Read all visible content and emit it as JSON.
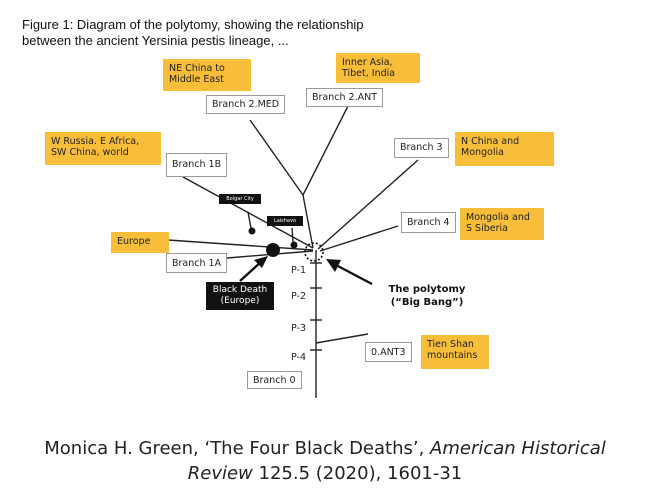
{
  "caption": {
    "line1": "Figure 1: Diagram of the polytomy, showing the relationship",
    "line2": "between the ancient Yersinia pestis lineage, ..."
  },
  "regions": {
    "ne_china": "NE China to Middle East",
    "inner_asia": "Inner Asia, Tibet, India",
    "w_russia": "W Russia. E Africa, SW China, world",
    "n_china": "N China and Mongolia",
    "europe": "Europe",
    "mongolia_siberia": "Mongolia and S Siberia",
    "tien_shan": "Tien Shan mountains"
  },
  "branches": {
    "b2med": "Branch 2.MED",
    "b2ant": "Branch 2.ANT",
    "b1b": "Branch 1B",
    "b3": "Branch 3",
    "b4": "Branch 4",
    "b1a": "Branch 1A",
    "b0ant3": "0.ANT3",
    "b0": "Branch 0"
  },
  "sites": {
    "bolgar": "Bolgar City",
    "laishevo": "Laishevo",
    "black_death": "Black Death (Europe)"
  },
  "points": {
    "p1": "P-1",
    "p2": "P-2",
    "p3": "P-3",
    "p4": "P-4"
  },
  "polytomy": {
    "line1": "The polytomy",
    "line2": "(“Big Bang”)"
  },
  "citation": {
    "author": "Monica H. Green, ‘The Four Black Deaths’, ",
    "journal": "American Historical",
    "journal2": "Review",
    "rest": " 125.5 (2020), 1601-31"
  },
  "colors": {
    "region_fill": "#f8be3a",
    "line": "#222222"
  }
}
